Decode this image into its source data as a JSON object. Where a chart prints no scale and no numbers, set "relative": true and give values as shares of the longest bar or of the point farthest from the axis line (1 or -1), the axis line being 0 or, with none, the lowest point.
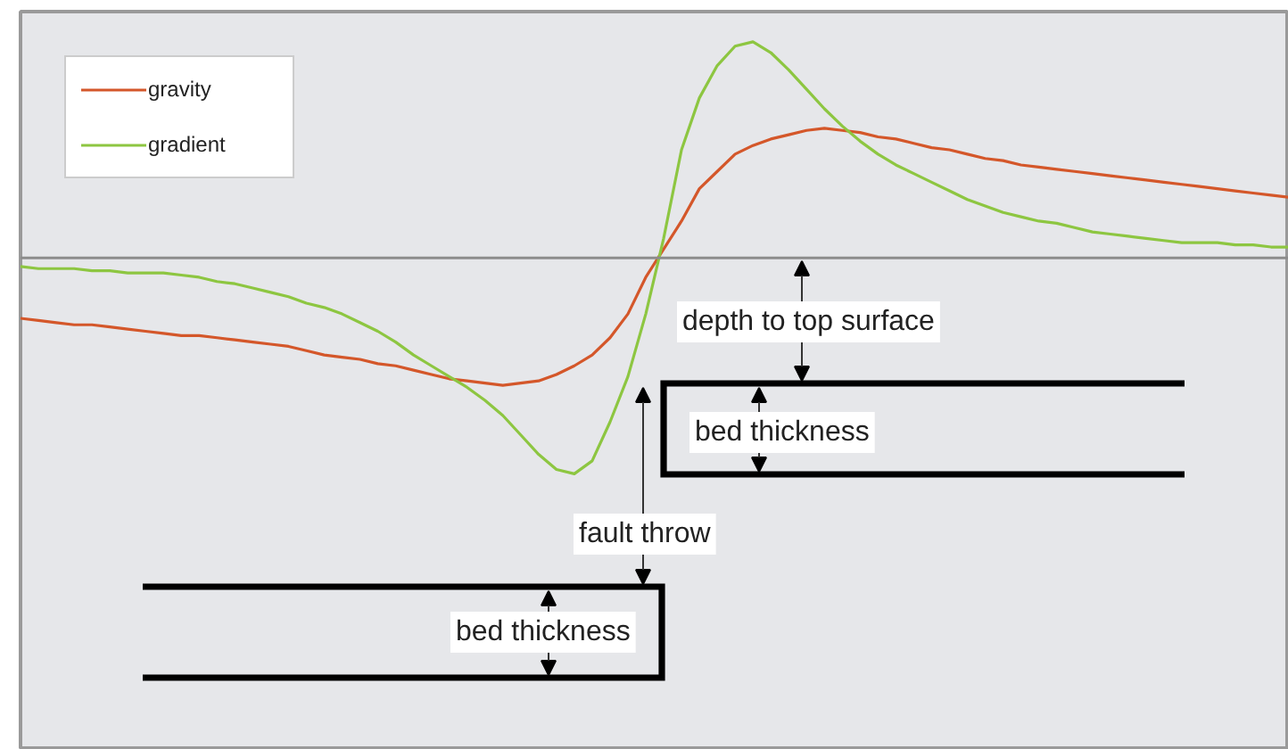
{
  "chart_data": {
    "type": "line",
    "relative": true,
    "legend": "top left",
    "grid": false,
    "categories": [
      null,
      null,
      null,
      null,
      null,
      null,
      null,
      null,
      null,
      null,
      null,
      null,
      null,
      null,
      null,
      null,
      null,
      null,
      null,
      null,
      null,
      null,
      null,
      null,
      null,
      null,
      null,
      null,
      null,
      null,
      null,
      null,
      null,
      null,
      null,
      null,
      null,
      null,
      null,
      null,
      null,
      null,
      null,
      null,
      null,
      null,
      null,
      null,
      null,
      null,
      null,
      null,
      null,
      null,
      null,
      null,
      null,
      null,
      null,
      null,
      null,
      null,
      null,
      null,
      null,
      null,
      null,
      null,
      null,
      null,
      null,
      null
    ],
    "series": [
      {
        "name": "gravity",
        "color": "#d4572a",
        "values": [
          -0.28,
          -0.29,
          -0.3,
          -0.31,
          -0.31,
          -0.32,
          -0.33,
          -0.34,
          -0.35,
          -0.36,
          -0.36,
          -0.37,
          -0.38,
          -0.39,
          -0.4,
          -0.41,
          -0.43,
          -0.45,
          -0.46,
          -0.47,
          -0.49,
          -0.5,
          -0.52,
          -0.54,
          -0.56,
          -0.57,
          -0.58,
          -0.59,
          -0.58,
          -0.57,
          -0.54,
          -0.5,
          -0.45,
          -0.37,
          -0.26,
          -0.09,
          0.04,
          0.17,
          0.32,
          0.4,
          0.48,
          0.52,
          0.55,
          0.57,
          0.59,
          0.6,
          0.59,
          0.58,
          0.56,
          0.55,
          0.53,
          0.51,
          0.5,
          0.48,
          0.46,
          0.45,
          0.43,
          0.42,
          0.41,
          0.4,
          0.39,
          0.38,
          0.37,
          0.36,
          0.35,
          0.34,
          0.33,
          0.32,
          0.31,
          0.3,
          0.29,
          0.28
        ]
      },
      {
        "name": "gradient",
        "color": "#8dc641",
        "values": [
          -0.04,
          -0.05,
          -0.05,
          -0.05,
          -0.06,
          -0.06,
          -0.07,
          -0.07,
          -0.07,
          -0.08,
          -0.09,
          -0.11,
          -0.12,
          -0.14,
          -0.16,
          -0.18,
          -0.21,
          -0.23,
          -0.26,
          -0.3,
          -0.34,
          -0.39,
          -0.45,
          -0.5,
          -0.55,
          -0.6,
          -0.66,
          -0.73,
          -0.82,
          -0.91,
          -0.98,
          -1.0,
          -0.94,
          -0.76,
          -0.55,
          -0.26,
          0.09,
          0.5,
          0.74,
          0.89,
          0.98,
          1.0,
          0.95,
          0.87,
          0.78,
          0.69,
          0.61,
          0.54,
          0.48,
          0.43,
          0.39,
          0.35,
          0.31,
          0.27,
          0.24,
          0.21,
          0.19,
          0.17,
          0.16,
          0.14,
          0.12,
          0.11,
          0.1,
          0.09,
          0.08,
          0.07,
          0.07,
          0.07,
          0.06,
          0.06,
          0.05,
          0.05
        ]
      }
    ],
    "annotations": [
      "depth to top surface",
      "bed thickness",
      "fault throw",
      "bed thickness"
    ]
  }
}
